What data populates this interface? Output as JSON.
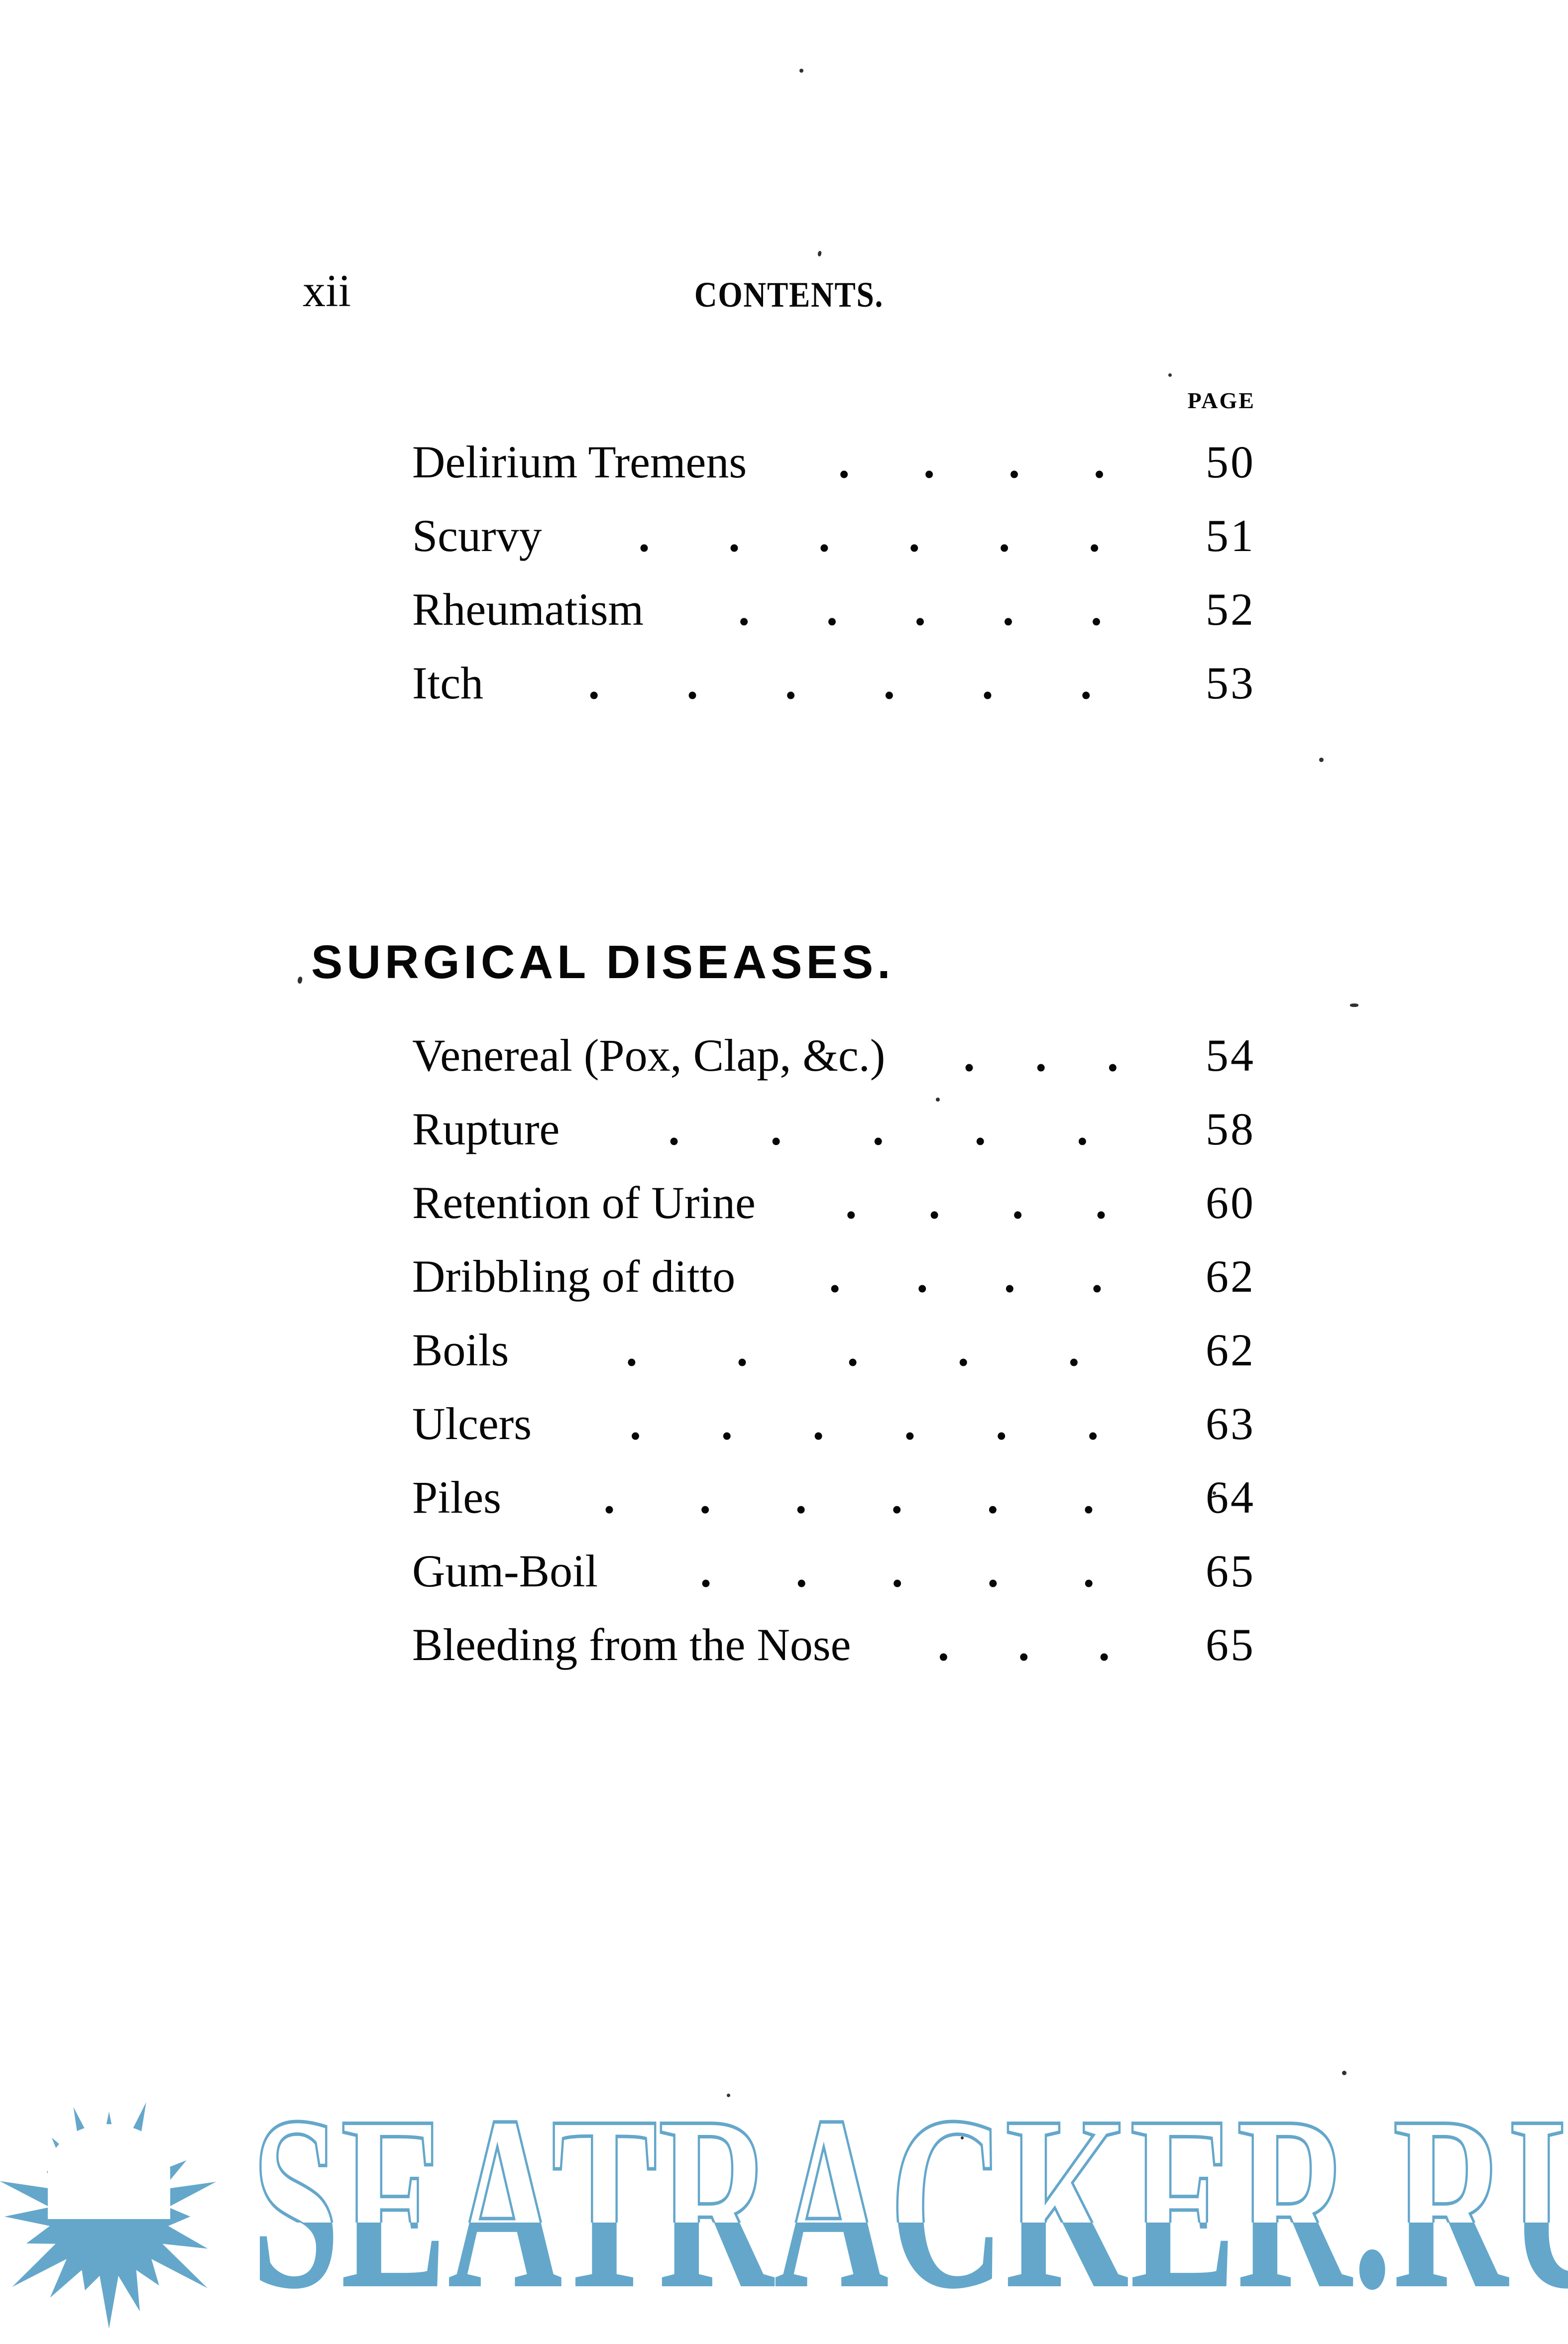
{
  "page": {
    "folio": "xii",
    "title": "CONTENTS.",
    "page_column_label": "PAGE"
  },
  "sections": [
    {
      "heading": "",
      "entries": [
        {
          "label": "Delirium Tremens",
          "dots": 4,
          "page": "50"
        },
        {
          "label": "Scurvy",
          "dots": 6,
          "page": "51"
        },
        {
          "label": "Rheumatism",
          "dots": 5,
          "page": "52"
        },
        {
          "label": "Itch",
          "dots": 6,
          "page": "53"
        }
      ]
    },
    {
      "heading": "SURGICAL DISEASES.",
      "entries": [
        {
          "label": "Venereal (Pox, Clap, &c.)",
          "dots": 3,
          "page": "54"
        },
        {
          "label": "Rupture",
          "dots": 5,
          "page": "58"
        },
        {
          "label": "Retention of Urine",
          "dots": 4,
          "page": "60"
        },
        {
          "label": "Dribbling of ditto",
          "dots": 4,
          "page": "62"
        },
        {
          "label": "Boils",
          "dots": 5,
          "page": "62"
        },
        {
          "label": "Ulcers",
          "dots": 6,
          "page": "63"
        },
        {
          "label": "Piles",
          "dots": 6,
          "page": "64"
        },
        {
          "label": "Gum-Boil",
          "dots": 5,
          "page": "65"
        },
        {
          "label": "Bleeding from the Nose",
          "dots": 3,
          "page": "65"
        }
      ]
    }
  ],
  "watermark": {
    "text": "SEATRACKER.RU",
    "icon": "sun-logo",
    "color": "#64a7cb"
  },
  "colors": {
    "ink": "#070707",
    "paper": "#ffffff",
    "watermark_blue": "#64a7cb"
  }
}
